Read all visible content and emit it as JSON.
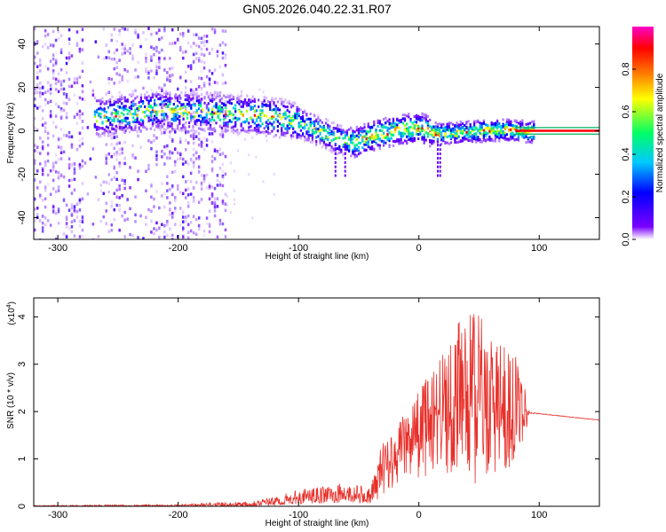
{
  "title": "GN05.2026.040.22.31.R07",
  "colors": {
    "snr_line": "#e8302a",
    "frame": "#000000"
  },
  "chart_data": [
    {
      "type": "heatmap",
      "name": "spectrogram",
      "xlabel": "Height of straight line (km)",
      "ylabel": "Frequency (Hz)",
      "xlim": [
        -320,
        150
      ],
      "ylim": [
        -50,
        48
      ],
      "xticks": [
        -300,
        -200,
        -100,
        0,
        100
      ],
      "yticks": [
        -40,
        -20,
        0,
        20,
        40
      ],
      "colorbar": {
        "label": "Normalized spectral amplitude",
        "range": [
          0,
          1
        ],
        "ticks": [
          "0.0",
          "0.2",
          "0.4",
          "0.6",
          "0.8"
        ],
        "tick_values": [
          0,
          0.2,
          0.4,
          0.6,
          0.8
        ],
        "colors": [
          "#ffffff",
          "#7a00ff",
          "#0000ff",
          "#00c8ff",
          "#00ff66",
          "#ffff00",
          "#ff7a00",
          "#ff0000",
          "#ff00c8"
        ]
      },
      "ridge": [
        {
          "x": -260,
          "f": 7
        },
        {
          "x": -220,
          "f": 10
        },
        {
          "x": -180,
          "f": 9
        },
        {
          "x": -140,
          "f": 8
        },
        {
          "x": -110,
          "f": 6
        },
        {
          "x": -90,
          "f": 2
        },
        {
          "x": -70,
          "f": -3
        },
        {
          "x": -55,
          "f": -5
        },
        {
          "x": -40,
          "f": -2
        },
        {
          "x": -20,
          "f": 1
        },
        {
          "x": 0,
          "f": 2
        },
        {
          "x": 15,
          "f": -1
        },
        {
          "x": 40,
          "f": 0
        },
        {
          "x": 70,
          "f": 1
        },
        {
          "x": 95,
          "f": 0
        },
        {
          "x": 150,
          "f": 0
        }
      ],
      "noise_region": [
        -320,
        -160
      ]
    },
    {
      "type": "line",
      "name": "snr",
      "xlabel": "Height of straight line (km)",
      "ylabel": "SNR (10 * v/v)",
      "multiplier": "(x10",
      "multiplier_exp": "4",
      "multiplier_close": ")",
      "xlim": [
        -320,
        150
      ],
      "ylim": [
        0,
        4.4
      ],
      "xticks": [
        -300,
        -200,
        -100,
        0,
        100
      ],
      "yticks": [
        0,
        1,
        2,
        3,
        4
      ],
      "envelope": [
        {
          "x": -320,
          "lo": 0.0,
          "hi": 0.02
        },
        {
          "x": -200,
          "lo": 0.0,
          "hi": 0.04
        },
        {
          "x": -150,
          "lo": 0.0,
          "hi": 0.1
        },
        {
          "x": -120,
          "lo": 0.02,
          "hi": 0.2
        },
        {
          "x": -100,
          "lo": 0.05,
          "hi": 0.35
        },
        {
          "x": -60,
          "lo": 0.08,
          "hi": 0.5
        },
        {
          "x": -40,
          "lo": 0.05,
          "hi": 0.4
        },
        {
          "x": -30,
          "lo": 0.2,
          "hi": 1.4
        },
        {
          "x": -10,
          "lo": 0.6,
          "hi": 2.0
        },
        {
          "x": 10,
          "lo": 0.6,
          "hi": 2.9
        },
        {
          "x": 30,
          "lo": 0.4,
          "hi": 3.8
        },
        {
          "x": 45,
          "lo": 0.4,
          "hi": 4.3
        },
        {
          "x": 60,
          "lo": 0.5,
          "hi": 3.6
        },
        {
          "x": 80,
          "lo": 0.8,
          "hi": 3.2
        },
        {
          "x": 88,
          "lo": 1.4,
          "hi": 2.6
        },
        {
          "x": 92,
          "lo": 1.9,
          "hi": 2.05
        },
        {
          "x": 100,
          "lo": 1.93,
          "hi": 1.98
        },
        {
          "x": 150,
          "lo": 1.8,
          "hi": 1.84
        }
      ]
    }
  ]
}
